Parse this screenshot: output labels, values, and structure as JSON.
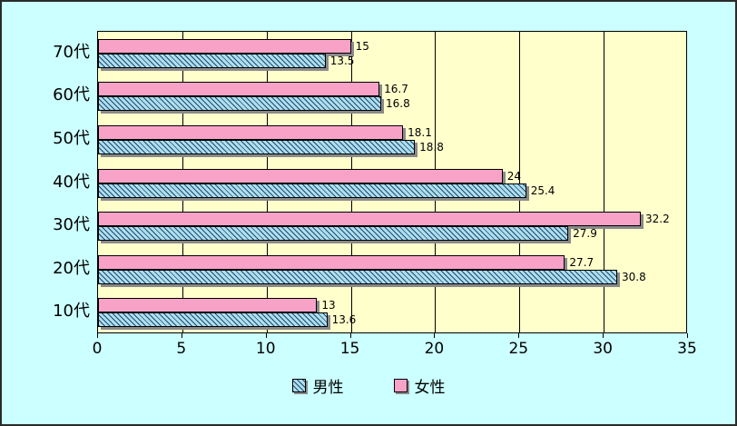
{
  "chart_data": {
    "type": "bar",
    "orientation": "horizontal",
    "title": "",
    "categories": [
      "70代",
      "60代",
      "50代",
      "40代",
      "30代",
      "20代",
      "10代"
    ],
    "series": [
      {
        "name": "男性",
        "values": [
          13.5,
          16.8,
          18.8,
          25.4,
          27.9,
          30.8,
          13.6
        ],
        "color": "#ACE0EA",
        "pattern": "diagonal-hatch",
        "pattern_color": "#24457C"
      },
      {
        "name": "女性",
        "values": [
          15,
          16.7,
          18.1,
          24,
          32.2,
          27.7,
          13
        ],
        "color": "#F8A2C8",
        "pattern": "solid"
      }
    ],
    "xlim": [
      0,
      35
    ],
    "x_ticks": [
      0,
      5,
      10,
      15,
      20,
      25,
      30,
      35
    ],
    "grid": true,
    "data_labels": true,
    "legend_position": "bottom",
    "plot_bg": "#FFFFCC",
    "outer_bg": "#CCFFFF"
  },
  "legend": {
    "items": [
      {
        "label": "男性"
      },
      {
        "label": "女性"
      }
    ]
  }
}
